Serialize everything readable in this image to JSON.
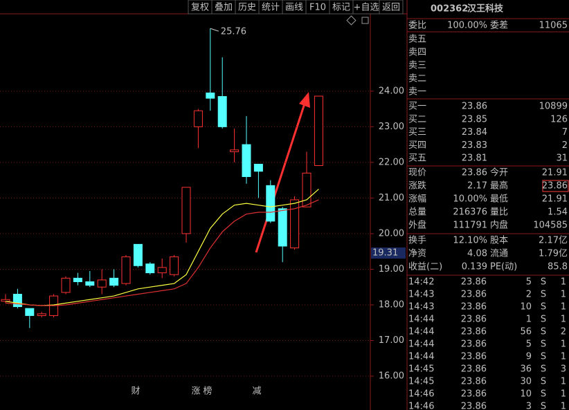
{
  "toolbar": [
    "复权",
    "叠加",
    "历史",
    "统计",
    "画线",
    "F10",
    "标记",
    "+自选",
    "返回"
  ],
  "chart": {
    "type": "candlestick",
    "ylim": [
      15.69,
      26.17
    ],
    "yticks": [
      {
        "value": 16,
        "label": "16.00"
      },
      {
        "value": 17,
        "label": "17.00"
      },
      {
        "value": 18,
        "label": "18.00"
      },
      {
        "value": 19,
        "label": "19.00"
      },
      {
        "value": 20,
        "label": "20.00"
      },
      {
        "value": 21,
        "label": "21.00"
      },
      {
        "value": 22,
        "label": "22.00"
      },
      {
        "value": 23,
        "label": "23.00"
      },
      {
        "value": 24,
        "label": "24.00"
      }
    ],
    "open": [
      18.1,
      18.3,
      17.9,
      17.7,
      17.7,
      18.35,
      18.75,
      18.65,
      18.5,
      18.75,
      18.6,
      19.7,
      19.15,
      18.9,
      18.85,
      20.0,
      23.0,
      23.95,
      23.85,
      22.3,
      22.5,
      21.95,
      21.35,
      20.7,
      19.6,
      20.75,
      21.91
    ],
    "close": [
      18.15,
      17.95,
      17.7,
      17.75,
      18.25,
      18.75,
      18.65,
      18.55,
      18.7,
      18.55,
      19.35,
      19.1,
      18.9,
      19.05,
      19.35,
      21.3,
      23.45,
      23.8,
      23.0,
      22.35,
      21.6,
      21.75,
      20.35,
      19.65,
      20.95,
      21.7,
      23.86
    ],
    "high": [
      18.3,
      18.45,
      17.9,
      17.8,
      18.3,
      18.8,
      18.9,
      18.95,
      19.0,
      19.0,
      19.4,
      19.7,
      19.2,
      19.3,
      19.4,
      21.3,
      23.5,
      25.76,
      24.95,
      22.95,
      23.3,
      21.95,
      21.5,
      20.75,
      21.05,
      22.3,
      23.86
    ],
    "low": [
      18.05,
      17.9,
      17.35,
      17.65,
      17.65,
      18.3,
      18.55,
      18.5,
      18.3,
      18.5,
      18.55,
      19.05,
      18.85,
      18.75,
      18.8,
      19.75,
      22.4,
      23.45,
      22.95,
      22.0,
      21.4,
      21.0,
      20.3,
      19.2,
      19.55,
      20.75,
      21.91
    ],
    "series": [
      {
        "color": "#ffff40",
        "values": [
          18.1,
          18.05,
          18.0,
          17.98,
          18.0,
          18.05,
          18.1,
          18.15,
          18.2,
          18.25,
          18.35,
          18.45,
          18.5,
          18.55,
          18.6,
          18.85,
          19.5,
          20.15,
          20.55,
          20.8,
          20.85,
          20.8,
          20.75,
          20.8,
          20.85,
          20.95,
          21.25
        ]
      },
      {
        "color": "#e03030",
        "values": [
          18.05,
          18.03,
          18.0,
          17.98,
          17.98,
          18.0,
          18.05,
          18.1,
          18.15,
          18.2,
          18.25,
          18.3,
          18.35,
          18.4,
          18.45,
          18.6,
          19.05,
          19.6,
          20.05,
          20.35,
          20.55,
          20.6,
          20.6,
          20.65,
          20.7,
          20.8,
          20.95
        ]
      }
    ],
    "up_color": "#ff3232",
    "down_color": "#54ffff",
    "annotation": "25.76",
    "cursor_label": "19.31",
    "markers": [
      "财",
      "涨",
      "榜",
      "减"
    ]
  },
  "quote": {
    "code": "002362",
    "name": "汉王科技",
    "ratio": [
      "委比",
      "100.00%",
      "委差",
      "11065"
    ],
    "asks": [
      "卖五",
      "卖四",
      "卖三",
      "卖二",
      "卖一"
    ],
    "bids": [
      [
        "买一",
        "23.86",
        "10899"
      ],
      [
        "买二",
        "23.85",
        "126"
      ],
      [
        "买三",
        "23.84",
        "7"
      ],
      [
        "买四",
        "23.83",
        "2"
      ],
      [
        "买五",
        "23.81",
        "31"
      ]
    ],
    "stats": [
      [
        "现价",
        "23.86",
        "今开",
        "21.91"
      ],
      [
        "涨跌",
        "2.17",
        "最高",
        "23.86"
      ],
      [
        "涨幅",
        "10.00%",
        "最低",
        "21.91"
      ],
      [
        "总量",
        "216376",
        "量比",
        "1.54"
      ],
      [
        "外盘",
        "111791",
        "内盘",
        "104585"
      ],
      [
        "换手",
        "12.10%",
        "股本",
        "2.17亿"
      ],
      [
        "净资",
        "4.08",
        "流通",
        "1.79亿"
      ],
      [
        "收益(二)",
        "0.139",
        "PE(动)",
        "85.8"
      ]
    ],
    "trades": [
      [
        "14:42",
        "23.86",
        "5",
        "S",
        "1"
      ],
      [
        "14:43",
        "23.86",
        "2",
        "S",
        "1"
      ],
      [
        "14:43",
        "23.86",
        "10",
        "S",
        "1"
      ],
      [
        "14:44",
        "23.86",
        "1",
        "S",
        "1"
      ],
      [
        "14:44",
        "23.86",
        "56",
        "S",
        "2"
      ],
      [
        "14:44",
        "23.86",
        "5",
        "S",
        "1"
      ],
      [
        "14:44",
        "23.86",
        "9",
        "S",
        "1"
      ],
      [
        "14:45",
        "23.86",
        "36",
        "S",
        "3"
      ],
      [
        "14:45",
        "23.86",
        "30",
        "S",
        "1"
      ],
      [
        "14:46",
        "23.86",
        "10",
        "S",
        "1"
      ],
      [
        "14:46",
        "23.86",
        "3",
        "S",
        "1"
      ]
    ]
  }
}
